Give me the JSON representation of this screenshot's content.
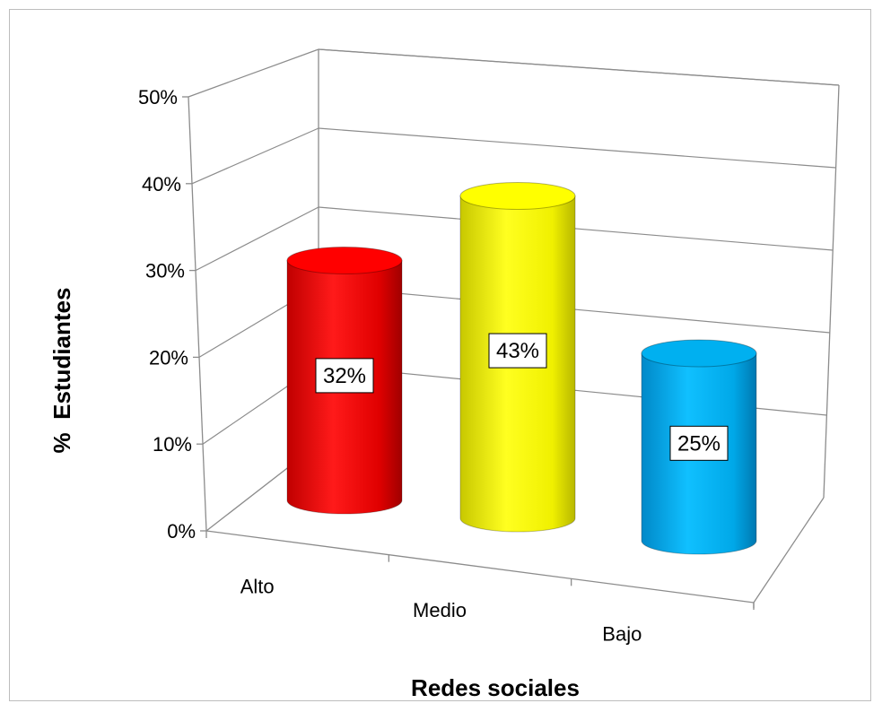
{
  "chart_data": {
    "type": "bar",
    "style": "3d-cylinder",
    "categories": [
      "Alto",
      "Medio",
      "Bajo"
    ],
    "values": [
      32,
      43,
      25
    ],
    "data_labels": [
      "32%",
      "43%",
      "25%"
    ],
    "colors": [
      "#ff0000",
      "#ffff00",
      "#00b0f0"
    ],
    "title": "",
    "xlabel": "Redes sociales",
    "ylabel": "%  Estudiantes",
    "ylim": [
      0,
      50
    ],
    "yticks": [
      "0%",
      "10%",
      "20%",
      "30%",
      "40%",
      "50%"
    ],
    "grid": true,
    "legend": "none"
  }
}
